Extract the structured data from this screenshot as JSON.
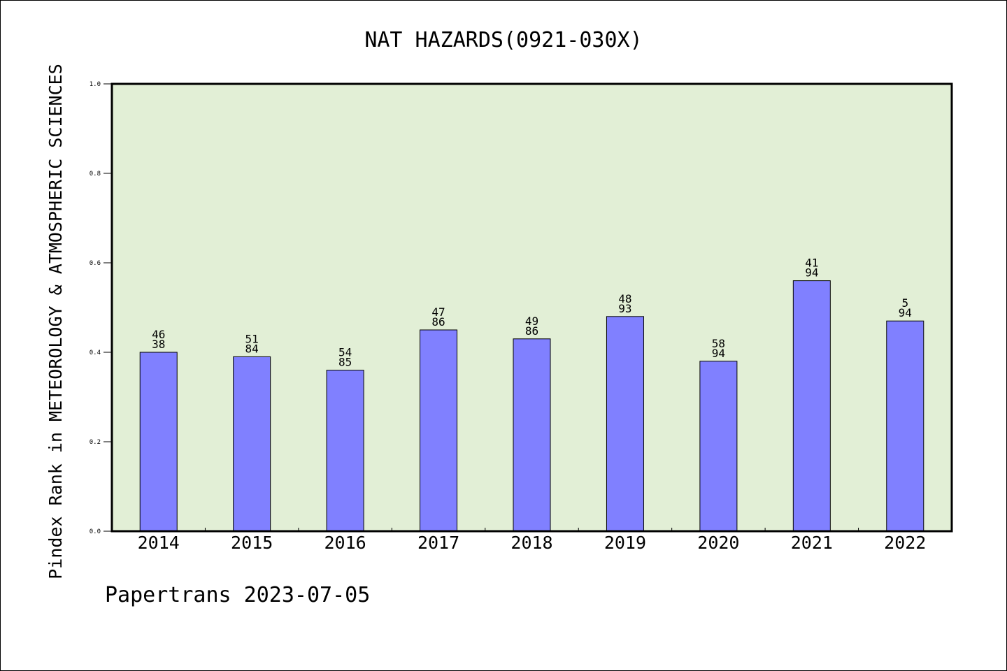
{
  "chart_data": {
    "type": "bar",
    "title": "NAT HAZARDS(0921-030X)",
    "xlabel": "",
    "ylabel": "Pindex Rank in METEOROLOGY & ATMOSPHERIC SCIENCES",
    "ylim": [
      0,
      1.0
    ],
    "yticks": [
      "0.0",
      "0.2",
      "0.4",
      "0.6",
      "0.8",
      "1.0"
    ],
    "categories": [
      "2014",
      "2015",
      "2016",
      "2017",
      "2018",
      "2019",
      "2020",
      "2021",
      "2022"
    ],
    "values": [
      0.4,
      0.39,
      0.36,
      0.45,
      0.43,
      0.48,
      0.38,
      0.56,
      0.47
    ],
    "labels_top": [
      "46",
      "51",
      "54",
      "47",
      "49",
      "48",
      "58",
      "41",
      "5"
    ],
    "labels_bottom": [
      "38",
      "84",
      "85",
      "86",
      "86",
      "93",
      "94",
      "94",
      "94"
    ],
    "grid": false,
    "colors": {
      "bar": "#8080ff",
      "plot_bg": "#e2efd6"
    }
  },
  "footer": "Papertrans 2023-07-05"
}
